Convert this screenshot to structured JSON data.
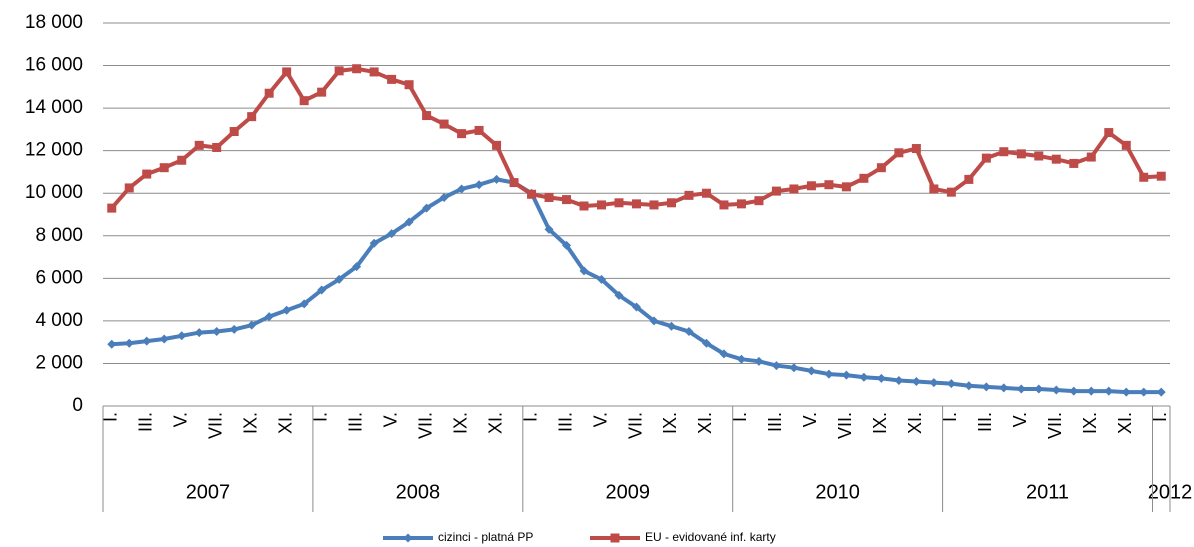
{
  "chart_data": {
    "type": "line",
    "categories": [
      "I.",
      null,
      "III.",
      null,
      "V.",
      null,
      "VII.",
      null,
      "IX.",
      null,
      "XI.",
      null,
      "I.",
      null,
      "III.",
      null,
      "V.",
      null,
      "VII.",
      null,
      "IX.",
      null,
      "XI.",
      null,
      "I.",
      null,
      "III.",
      null,
      "V.",
      null,
      "VII.",
      null,
      "IX.",
      null,
      "XI.",
      null,
      "I.",
      null,
      "III.",
      null,
      "V.",
      null,
      "VII.",
      null,
      "IX.",
      null,
      "XI.",
      null,
      "I.",
      null,
      "III.",
      null,
      "V.",
      null,
      "VII.",
      null,
      "IX.",
      null,
      "XI.",
      null,
      "I."
    ],
    "years": [
      "2007",
      "2008",
      "2009",
      "2010",
      "2011",
      "2012"
    ],
    "series": [
      {
        "name": "cizinci - platná PP",
        "color": "#4a7ebb",
        "marker": "diamond",
        "values": [
          2900,
          2950,
          3050,
          3150,
          3300,
          3450,
          3500,
          3600,
          3800,
          4200,
          4500,
          4800,
          5450,
          5950,
          6550,
          7650,
          8100,
          8650,
          9300,
          9800,
          10200,
          10400,
          10650,
          10500,
          10000,
          8300,
          7550,
          6350,
          5950,
          5200,
          4650,
          4000,
          3750,
          3500,
          2950,
          2450,
          2200,
          2100,
          1900,
          1800,
          1650,
          1500,
          1450,
          1350,
          1300,
          1200,
          1150,
          1100,
          1050,
          950,
          900,
          850,
          800,
          800,
          750,
          700,
          700,
          700,
          650,
          650,
          650
        ]
      },
      {
        "name": "EU - evidované inf. karty",
        "color": "#be4b48",
        "marker": "square",
        "values": [
          9300,
          10250,
          10900,
          11200,
          11550,
          12250,
          12150,
          12900,
          13600,
          14700,
          15700,
          14350,
          14750,
          15750,
          15850,
          15700,
          15350,
          15100,
          13650,
          13250,
          12800,
          12950,
          12250,
          10500,
          9950,
          9800,
          9700,
          9400,
          9450,
          9550,
          9500,
          9450,
          9550,
          9900,
          10000,
          9450,
          9500,
          9650,
          10100,
          10200,
          10350,
          10400,
          10300,
          10700,
          11200,
          11900,
          12100,
          10200,
          10050,
          10650,
          11650,
          11950,
          11850,
          11750,
          11600,
          11400,
          11700,
          12850,
          12250,
          10750,
          10800
        ]
      }
    ],
    "ylim": [
      0,
      18000
    ],
    "yticks": [
      0,
      {
        "value": 2000,
        "label": "2 000"
      },
      {
        "value": 4000,
        "label": "4 000"
      },
      {
        "value": 6000,
        "label": "6 000"
      },
      {
        "value": 8000,
        "label": "8 000"
      },
      {
        "value": 10000,
        "label": "10 000"
      },
      {
        "value": 12000,
        "label": "12 000"
      },
      {
        "value": 14000,
        "label": "14 000"
      },
      {
        "value": 16000,
        "label": "16 000"
      },
      {
        "value": 18000,
        "label": "18 000"
      }
    ],
    "grid": true,
    "legend": "bottom"
  }
}
